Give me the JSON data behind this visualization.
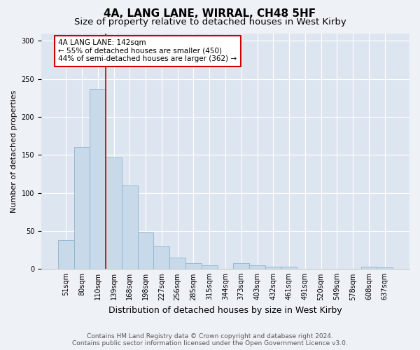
{
  "title": "4A, LANG LANE, WIRRAL, CH48 5HF",
  "subtitle": "Size of property relative to detached houses in West Kirby",
  "xlabel": "Distribution of detached houses by size in West Kirby",
  "ylabel": "Number of detached properties",
  "categories": [
    "51sqm",
    "80sqm",
    "110sqm",
    "139sqm",
    "168sqm",
    "198sqm",
    "227sqm",
    "256sqm",
    "285sqm",
    "315sqm",
    "344sqm",
    "373sqm",
    "403sqm",
    "432sqm",
    "461sqm",
    "491sqm",
    "520sqm",
    "549sqm",
    "578sqm",
    "608sqm",
    "637sqm"
  ],
  "values": [
    38,
    160,
    237,
    147,
    110,
    48,
    30,
    15,
    8,
    5,
    0,
    8,
    5,
    3,
    3,
    0,
    0,
    0,
    0,
    3,
    2
  ],
  "bar_color": "#c8daea",
  "bar_edge_color": "#8ab4d0",
  "annotation_text_line1": "4A LANG LANE: 142sqm",
  "annotation_text_line2": "← 55% of detached houses are smaller (450)",
  "annotation_text_line3": "44% of semi-detached houses are larger (362) →",
  "annotation_box_color": "#ffffff",
  "annotation_box_edge_color": "#cc0000",
  "vline_color": "#cc0000",
  "ylim": [
    0,
    310
  ],
  "yticks": [
    0,
    50,
    100,
    150,
    200,
    250,
    300
  ],
  "plot_bg_color": "#dde6f0",
  "fig_bg_color": "#eef2f7",
  "footer_line1": "Contains HM Land Registry data © Crown copyright and database right 2024.",
  "footer_line2": "Contains public sector information licensed under the Open Government Licence v3.0.",
  "title_fontsize": 11,
  "subtitle_fontsize": 9.5,
  "xlabel_fontsize": 9,
  "ylabel_fontsize": 8,
  "tick_fontsize": 7,
  "footer_fontsize": 6.5,
  "annot_fontsize": 7.5
}
